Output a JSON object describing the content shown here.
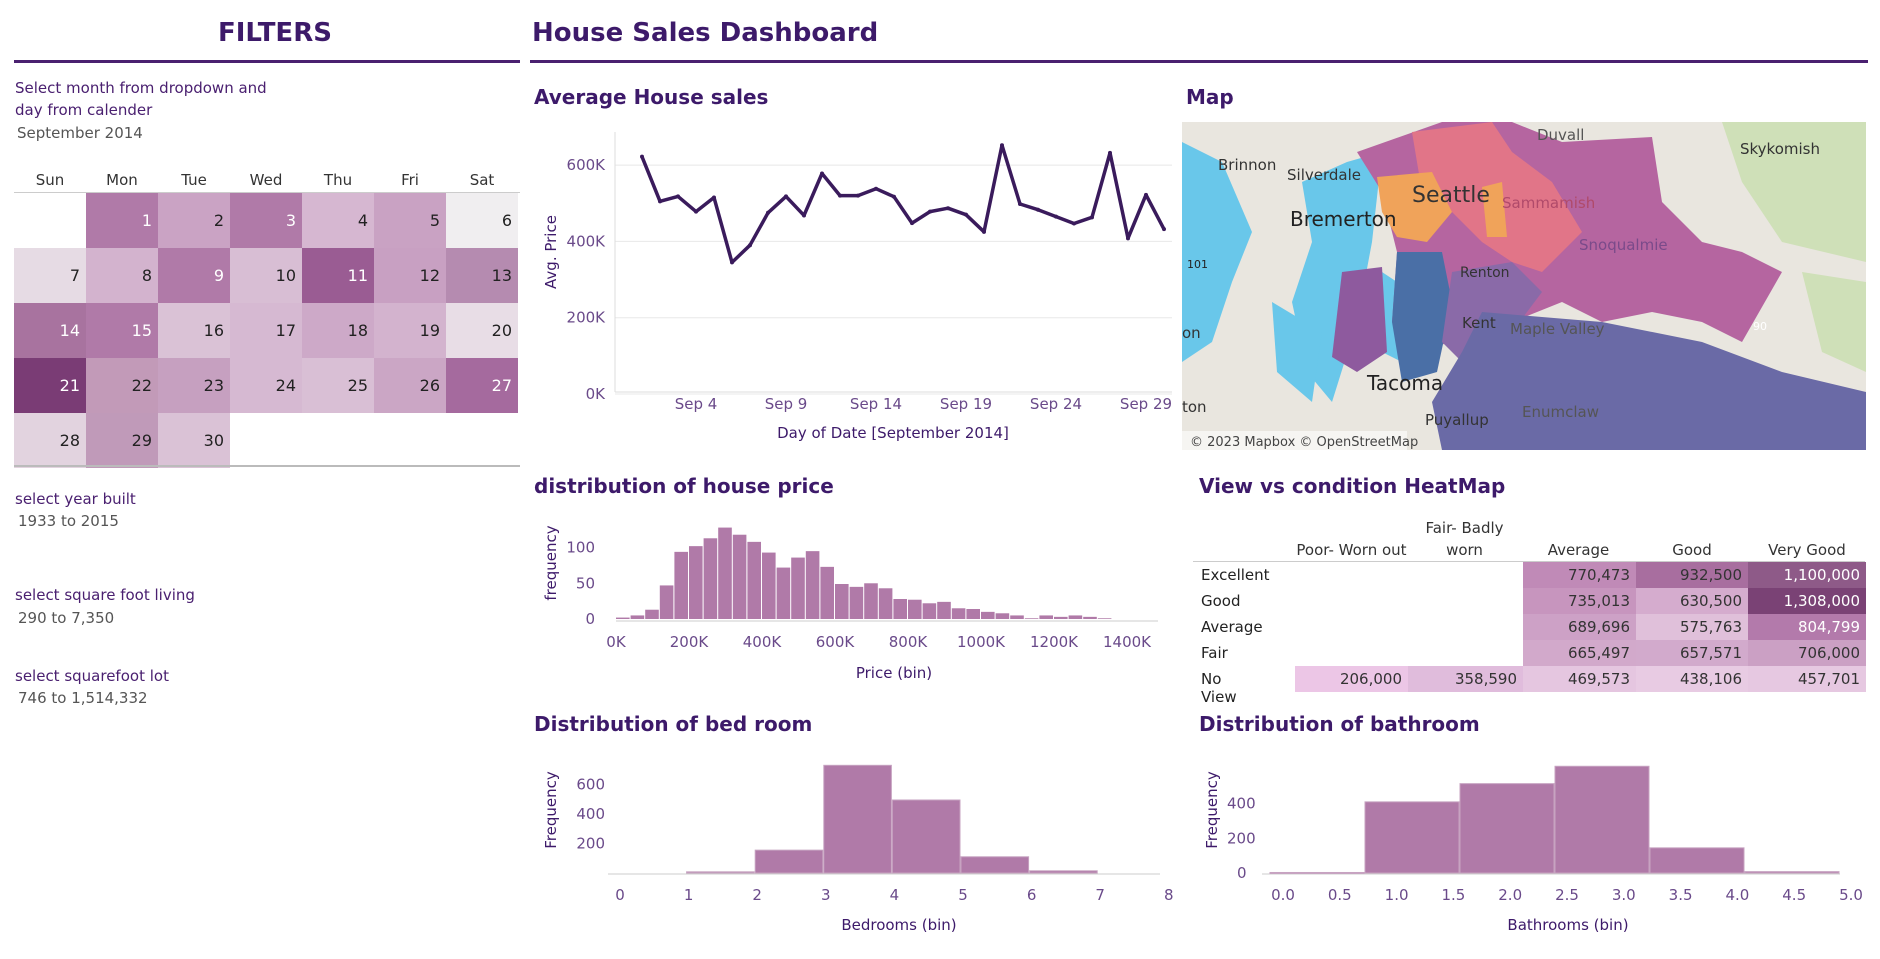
{
  "filters": {
    "title": "FILTERS",
    "month_label_1": "Select month from dropdown and",
    "month_label_2": "day from calender",
    "month_value": "September 2014",
    "weekdays": [
      "Sun",
      "Mon",
      "Tue",
      "Wed",
      "Thu",
      "Fri",
      "Sat"
    ],
    "year_label": "select year built",
    "year_value": "1933 to 2015",
    "sqft_living_label": "select square foot living",
    "sqft_living_value": "290 to 7,350",
    "sqft_lot_label": "select squarefoot lot",
    "sqft_lot_value": "746 to 1,514,332"
  },
  "calendar": [
    {
      "day": "",
      "shade": "#ffffff"
    },
    {
      "day": "1",
      "shade": "#b07aa8"
    },
    {
      "day": "2",
      "shade": "#caa3c4"
    },
    {
      "day": "3",
      "shade": "#b07aa8"
    },
    {
      "day": "4",
      "shade": "#d6b7d1"
    },
    {
      "day": "5",
      "shade": "#c9a2c3"
    },
    {
      "day": "6",
      "shade": "#f0eef0"
    },
    {
      "day": "7",
      "shade": "#e6dbe4"
    },
    {
      "day": "8",
      "shade": "#d3b3ce"
    },
    {
      "day": "9",
      "shade": "#b07aa8"
    },
    {
      "day": "10",
      "shade": "#d8bed4"
    },
    {
      "day": "11",
      "shade": "#9a5c93"
    },
    {
      "day": "12",
      "shade": "#c8a0c2"
    },
    {
      "day": "13",
      "shade": "#b58bb0"
    },
    {
      "day": "14",
      "shade": "#a8739f"
    },
    {
      "day": "15",
      "shade": "#b07aa8"
    },
    {
      "day": "16",
      "shade": "#dac2d6"
    },
    {
      "day": "17",
      "shade": "#d6b9d2"
    },
    {
      "day": "18",
      "shade": "#cda9c8"
    },
    {
      "day": "19",
      "shade": "#d3b3ce"
    },
    {
      "day": "20",
      "shade": "#e8dde6"
    },
    {
      "day": "21",
      "shade": "#7a3c75"
    },
    {
      "day": "22",
      "shade": "#c29ab8"
    },
    {
      "day": "23",
      "shade": "#c6a0c0"
    },
    {
      "day": "24",
      "shade": "#d6b9d2"
    },
    {
      "day": "25",
      "shade": "#d9bfd5"
    },
    {
      "day": "26",
      "shade": "#cba6c5"
    },
    {
      "day": "27",
      "shade": "#a56a9e"
    },
    {
      "day": "28",
      "shade": "#e2d3df"
    },
    {
      "day": "29",
      "shade": "#c09ab9"
    },
    {
      "day": "30",
      "shade": "#dac2d6"
    }
  ],
  "dashboard": {
    "title": "House Sales Dashboard"
  },
  "map": {
    "title": "Map",
    "labels": [
      "Skykomish",
      "Brinnon",
      "Silverdale",
      "Bremerton",
      "Tacoma",
      "Puyallup",
      "Enumclaw",
      "Kent",
      "Renton",
      "Maple Valley",
      "Snoqualmie",
      "Sammamish",
      "Duvall",
      "Seattle",
      "101",
      "90",
      "on",
      "ton"
    ],
    "attribution": "© 2023 Mapbox © OpenStreetMap"
  },
  "heatmap": {
    "title": "View vs condition HeatMap",
    "columns": [
      "Poor- Worn out",
      "Fair- Badly",
      "worn",
      "Average",
      "Good",
      "Very Good"
    ],
    "rows": [
      {
        "label": "Excellent",
        "cells": [
          "",
          "",
          "770,473",
          "932,500",
          "1,100,000"
        ],
        "colors": [
          "",
          "",
          "#c08ab7",
          "#a86e9f",
          "#8e5a88"
        ]
      },
      {
        "label": "Good",
        "cells": [
          "",
          "",
          "735,013",
          "630,500",
          "1,308,000"
        ],
        "colors": [
          "",
          "",
          "#c795be",
          "#d5acce",
          "#7a4275"
        ]
      },
      {
        "label": "Average",
        "cells": [
          "",
          "",
          "689,696",
          "575,763",
          "804,799"
        ],
        "colors": [
          "",
          "",
          "#cda1c6",
          "#e0c0da",
          "#b37aab"
        ]
      },
      {
        "label": "Fair",
        "cells": [
          "",
          "",
          "665,497",
          "657,571",
          "706,000"
        ],
        "colors": [
          "",
          "",
          "#d2a9cb",
          "#d2aacc",
          "#cba0c4"
        ]
      },
      {
        "label": "No View",
        "cells": [
          "206,000",
          "358,590",
          "469,573",
          "438,106",
          "457,701"
        ],
        "colors": [
          "#ecc6e6",
          "#e0bcdc",
          "#e5c6e0",
          "#e8cbe3",
          "#e6c8e1"
        ]
      }
    ]
  },
  "chart_data": [
    {
      "type": "line",
      "title": "Average House sales",
      "xlabel": "Day of Date [September 2014]",
      "ylabel": "Avg. Price",
      "x_ticks": [
        "Sep 4",
        "Sep 9",
        "Sep 14",
        "Sep 19",
        "Sep 24",
        "Sep 29"
      ],
      "y_ticks": [
        "600K",
        "400K",
        "200K",
        "0K"
      ],
      "ylim": [
        0,
        650000
      ],
      "x": [
        1,
        2,
        3,
        4,
        5,
        6,
        7,
        8,
        9,
        10,
        11,
        12,
        13,
        14,
        15,
        16,
        17,
        18,
        19,
        20,
        21,
        22,
        23,
        24,
        25,
        26,
        27,
        28,
        29,
        30
      ],
      "values": [
        622000,
        505000,
        518000,
        478000,
        515000,
        345000,
        390000,
        475000,
        518000,
        468000,
        578000,
        520000,
        520000,
        538000,
        517000,
        448000,
        478000,
        487000,
        470000,
        425000,
        652000,
        498000,
        483000,
        465000,
        447000,
        463000,
        632000,
        408000,
        522000,
        432000
      ],
      "color": "#3a1b5c"
    },
    {
      "type": "bar",
      "title": "distribution of house price",
      "xlabel": "Price (bin)",
      "ylabel": "frequency",
      "x_ticks": [
        "0K",
        "200K",
        "400K",
        "600K",
        "800K",
        "1000K",
        "1200K",
        "1400K"
      ],
      "y_ticks": [
        "100",
        "50",
        "0"
      ],
      "bin_width": 40000,
      "bin_start": 40000,
      "values": [
        2,
        5,
        13,
        47,
        94,
        102,
        113,
        128,
        118,
        108,
        93,
        72,
        86,
        95,
        73,
        49,
        45,
        50,
        43,
        28,
        27,
        22,
        24,
        15,
        14,
        10,
        8,
        5,
        1,
        5,
        3,
        5,
        3,
        1,
        0,
        0,
        0,
        0
      ],
      "ylim": [
        0,
        140
      ],
      "color": "#b07aa8"
    },
    {
      "type": "bar",
      "title": "Distribution of bed room",
      "xlabel": "Bedrooms (bin)",
      "ylabel": "Frequency",
      "x_ticks": [
        "0",
        "1",
        "2",
        "3",
        "4",
        "5",
        "6",
        "7",
        "8"
      ],
      "y_ticks": [
        "600",
        "400",
        "200"
      ],
      "bins": [
        0,
        1,
        2,
        3,
        4,
        5,
        6,
        7
      ],
      "values": [
        0,
        8,
        155,
        730,
        495,
        110,
        15,
        0
      ],
      "ylim": [
        0,
        800
      ],
      "color": "#b07aa8"
    },
    {
      "type": "bar",
      "title": "Distribution of bathroom",
      "xlabel": "Bathrooms (bin)",
      "ylabel": "Frequency",
      "x_ticks": [
        "0.0",
        "0.5",
        "1.0",
        "1.5",
        "2.0",
        "2.5",
        "3.0",
        "3.5",
        "4.0",
        "4.5",
        "5.0"
      ],
      "y_ticks": [
        "400",
        "200",
        "0"
      ],
      "bins": [
        0,
        0.8,
        1.6,
        2.4,
        3.2,
        4.0
      ],
      "values": [
        3,
        410,
        515,
        615,
        145,
        8
      ],
      "ylim": [
        0,
        680
      ],
      "color": "#b07aa8"
    }
  ]
}
